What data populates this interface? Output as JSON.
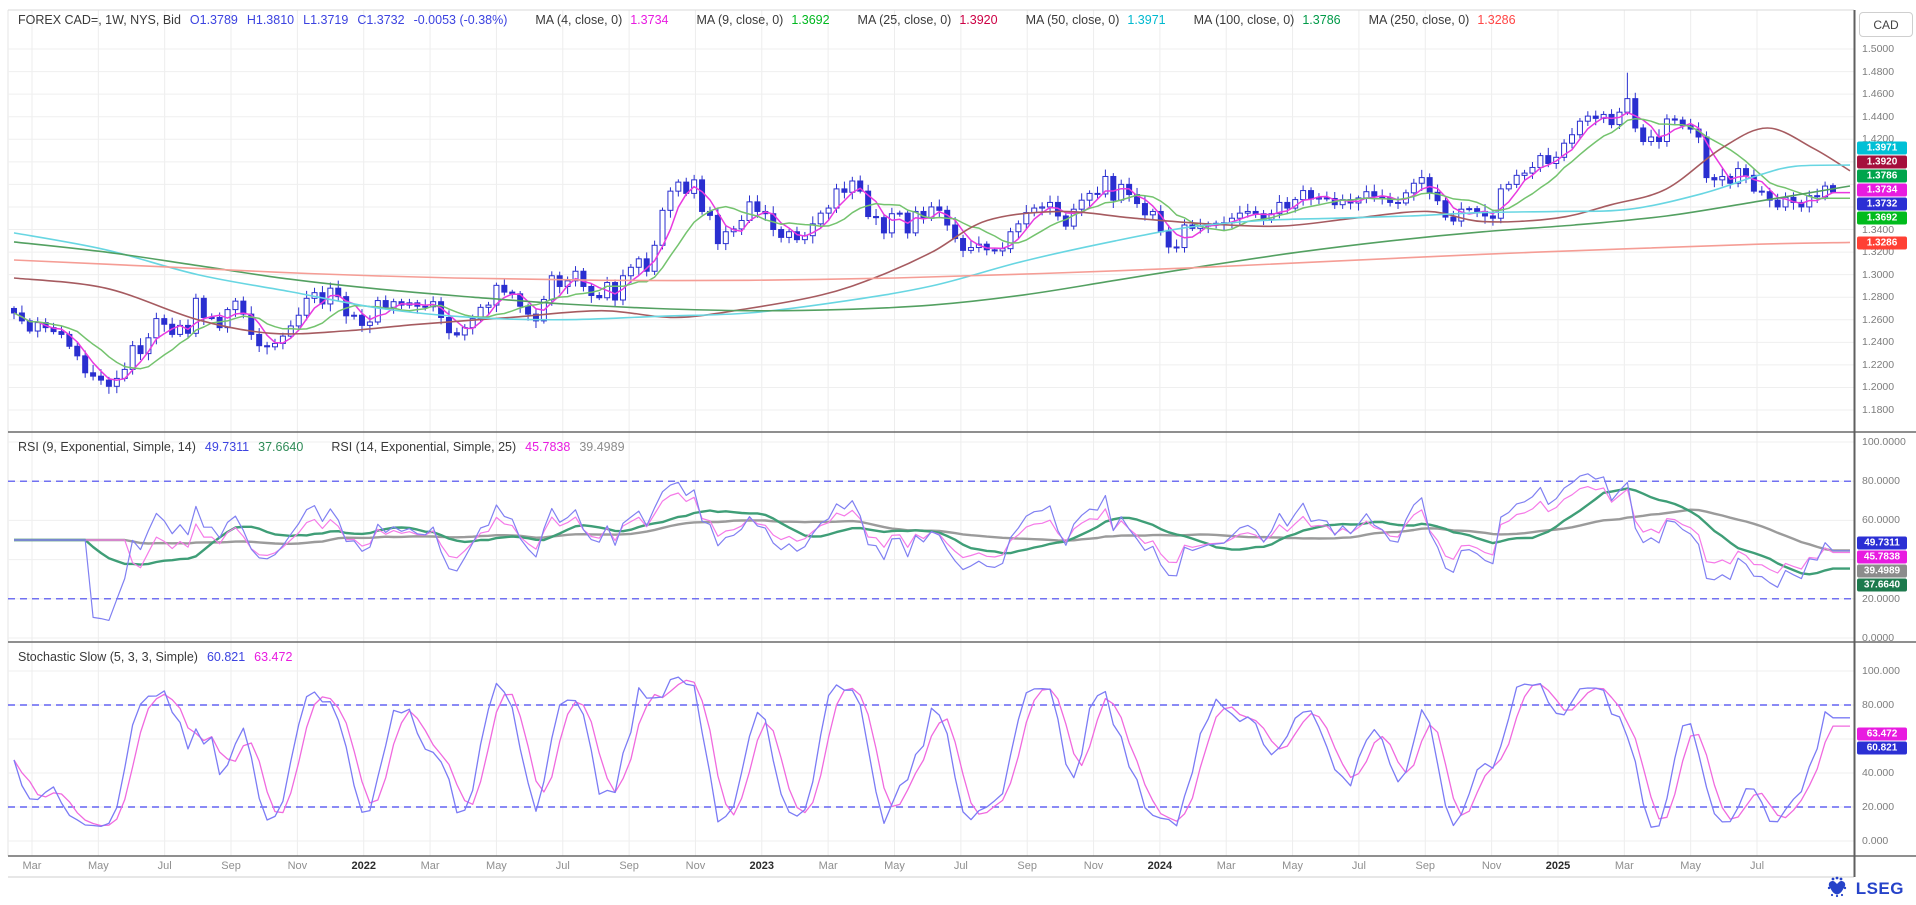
{
  "window": {
    "instrument_tab": "CAD"
  },
  "footer": {
    "logo_text": "LSEG"
  },
  "chart_data": [
    {
      "type": "candlestick",
      "symbol": "FOREX CAD=",
      "interval": "1W",
      "legend": {
        "title": "FOREX CAD=, 1W, NYS, Bid",
        "open": "O1.3789",
        "high": "H1.3810",
        "low": "L1.3719",
        "close": "C1.3732",
        "change": "-0.0053 (-0.38%)",
        "ma": [
          {
            "label": "MA (4, close, 0)",
            "value": "1.3734",
            "color": "#e81be0"
          },
          {
            "label": "MA (9, close, 0)",
            "value": "1.3692",
            "color": "#00b81f"
          },
          {
            "label": "MA (25, close, 0)",
            "value": "1.3920",
            "color": "#cc0044"
          },
          {
            "label": "MA (50, close, 0)",
            "value": "1.3971",
            "color": "#00b9cf"
          },
          {
            "label": "MA (100, close, 0)",
            "value": "1.3786",
            "color": "#009a48"
          },
          {
            "label": "MA (250, close, 0)",
            "value": "1.3286",
            "color": "#ff4545"
          }
        ]
      },
      "current_candle": {
        "open": 1.3789,
        "high": 1.381,
        "low": 1.3719,
        "close": 1.3732
      },
      "ylim": [
        1.16,
        1.515
      ],
      "y_ticks": [
        "1.5000",
        "1.4800",
        "1.4600",
        "1.4400",
        "1.4200",
        "1.3400",
        "1.3200",
        "1.3000",
        "1.2800",
        "1.2600",
        "1.2400",
        "1.2200",
        "1.2000",
        "1.1800"
      ],
      "x_labels": [
        {
          "text": "Mar"
        },
        {
          "text": "May"
        },
        {
          "text": "Jul"
        },
        {
          "text": "Sep"
        },
        {
          "text": "Nov"
        },
        {
          "text": "2022",
          "bold": true
        },
        {
          "text": "Mar"
        },
        {
          "text": "May"
        },
        {
          "text": "Jul"
        },
        {
          "text": "Sep"
        },
        {
          "text": "Nov"
        },
        {
          "text": "2023",
          "bold": true
        },
        {
          "text": "Mar"
        },
        {
          "text": "May"
        },
        {
          "text": "Jul"
        },
        {
          "text": "Sep"
        },
        {
          "text": "Nov"
        },
        {
          "text": "2024",
          "bold": true
        },
        {
          "text": "Mar"
        },
        {
          "text": "May"
        },
        {
          "text": "Jul"
        },
        {
          "text": "Sep"
        },
        {
          "text": "Nov"
        },
        {
          "text": "2025",
          "bold": true
        },
        {
          "text": "Mar"
        },
        {
          "text": "May"
        },
        {
          "text": "Jul"
        }
      ],
      "closes": [
        1.266,
        1.259,
        1.25,
        1.2575,
        1.253,
        1.2495,
        1.247,
        1.2365,
        1.228,
        1.213,
        1.21,
        1.2065,
        1.201,
        1.208,
        1.216,
        1.237,
        1.23,
        1.244,
        1.261,
        1.256,
        1.247,
        1.255,
        1.248,
        1.279,
        1.262,
        1.262,
        1.253,
        1.269,
        1.2765,
        1.265,
        1.247,
        1.237,
        1.236,
        1.239,
        1.2455,
        1.2545,
        1.264,
        1.279,
        1.284,
        1.274,
        1.288,
        1.2805,
        1.2635,
        1.264,
        1.255,
        1.258,
        1.277,
        1.271,
        1.276,
        1.273,
        1.275,
        1.272,
        1.2715,
        1.276,
        1.262,
        1.2485,
        1.2465,
        1.253,
        1.261,
        1.271,
        1.273,
        1.2905,
        1.2845,
        1.283,
        1.272,
        1.265,
        1.259,
        1.278,
        1.299,
        1.2895,
        1.2945,
        1.303,
        1.2895,
        1.2815,
        1.2795,
        1.293,
        1.2775,
        1.299,
        1.3065,
        1.314,
        1.303,
        1.326,
        1.357,
        1.374,
        1.382,
        1.372,
        1.384,
        1.356,
        1.3525,
        1.3275,
        1.338,
        1.3405,
        1.348,
        1.3645,
        1.356,
        1.354,
        1.34,
        1.333,
        1.338,
        1.331,
        1.3345,
        1.345,
        1.3545,
        1.359,
        1.376,
        1.373,
        1.383,
        1.374,
        1.3515,
        1.3505,
        1.337,
        1.354,
        1.3545,
        1.337,
        1.356,
        1.35,
        1.36,
        1.357,
        1.344,
        1.332,
        1.3215,
        1.324,
        1.327,
        1.322,
        1.321,
        1.323,
        1.338,
        1.345,
        1.355,
        1.359,
        1.36,
        1.364,
        1.352,
        1.343,
        1.358,
        1.366,
        1.372,
        1.3715,
        1.387,
        1.366,
        1.38,
        1.371,
        1.363,
        1.353,
        1.356,
        1.338,
        1.3245,
        1.324,
        1.344,
        1.341,
        1.343,
        1.345,
        1.3455,
        1.346,
        1.35,
        1.3545,
        1.356,
        1.354,
        1.349,
        1.354,
        1.364,
        1.359,
        1.3665,
        1.3745,
        1.367,
        1.368,
        1.3675,
        1.362,
        1.3665,
        1.3635,
        1.368,
        1.3735,
        1.3695,
        1.368,
        1.364,
        1.3635,
        1.3725,
        1.381,
        1.386,
        1.373,
        1.3655,
        1.351,
        1.3475,
        1.358,
        1.3585,
        1.356,
        1.352,
        1.35,
        1.376,
        1.38,
        1.388,
        1.39,
        1.395,
        1.4055,
        1.3985,
        1.404,
        1.4165,
        1.424,
        1.436,
        1.4405,
        1.4385,
        1.442,
        1.433,
        1.444,
        1.456,
        1.43,
        1.418,
        1.422,
        1.418,
        1.438,
        1.437,
        1.432,
        1.429,
        1.422,
        1.386,
        1.384,
        1.387,
        1.381,
        1.394,
        1.388,
        1.374,
        1.3735,
        1.366,
        1.36,
        1.3685,
        1.364,
        1.36,
        1.37,
        1.369,
        1.3785,
        1.3732
      ],
      "spike": {
        "index": 204,
        "high": 1.479
      },
      "overlays": [
        {
          "name": "MA 4",
          "window": 4,
          "color": "#e93ae0"
        },
        {
          "name": "MA 9",
          "window": 9,
          "color": "#74c36e"
        },
        {
          "name": "MA 25",
          "color": "#a65b60",
          "points": [
            [
              0,
              1.297
            ],
            [
              0.05,
              1.288
            ],
            [
              0.1,
              1.26
            ],
            [
              0.14,
              1.248
            ],
            [
              0.18,
              1.25
            ],
            [
              0.22,
              1.256
            ],
            [
              0.27,
              1.262
            ],
            [
              0.32,
              1.268
            ],
            [
              0.36,
              1.262
            ],
            [
              0.4,
              1.27
            ],
            [
              0.44,
              1.282
            ],
            [
              0.47,
              1.298
            ],
            [
              0.5,
              1.32
            ],
            [
              0.53,
              1.348
            ],
            [
              0.57,
              1.356
            ],
            [
              0.61,
              1.35
            ],
            [
              0.65,
              1.345
            ],
            [
              0.69,
              1.343
            ],
            [
              0.73,
              1.35
            ],
            [
              0.77,
              1.356
            ],
            [
              0.8,
              1.347
            ],
            [
              0.84,
              1.35
            ],
            [
              0.87,
              1.362
            ],
            [
              0.9,
              1.376
            ],
            [
              0.93,
              1.412
            ],
            [
              0.955,
              1.43
            ],
            [
              0.98,
              1.412
            ],
            [
              1,
              1.392
            ]
          ]
        },
        {
          "name": "MA 50",
          "color": "#68d6e2",
          "points": [
            [
              0,
              1.337
            ],
            [
              0.05,
              1.322
            ],
            [
              0.1,
              1.3
            ],
            [
              0.15,
              1.285
            ],
            [
              0.2,
              1.27
            ],
            [
              0.25,
              1.262
            ],
            [
              0.3,
              1.26
            ],
            [
              0.35,
              1.263
            ],
            [
              0.4,
              1.266
            ],
            [
              0.45,
              1.276
            ],
            [
              0.5,
              1.29
            ],
            [
              0.55,
              1.312
            ],
            [
              0.6,
              1.33
            ],
            [
              0.64,
              1.342
            ],
            [
              0.68,
              1.348
            ],
            [
              0.72,
              1.35
            ],
            [
              0.76,
              1.352
            ],
            [
              0.8,
              1.355
            ],
            [
              0.84,
              1.356
            ],
            [
              0.88,
              1.358
            ],
            [
              0.92,
              1.372
            ],
            [
              0.95,
              1.388
            ],
            [
              0.97,
              1.396
            ],
            [
              1,
              1.3971
            ]
          ]
        },
        {
          "name": "MA 100",
          "color": "#53a061",
          "points": [
            [
              0,
              1.329
            ],
            [
              0.05,
              1.32
            ],
            [
              0.1,
              1.308
            ],
            [
              0.15,
              1.296
            ],
            [
              0.2,
              1.287
            ],
            [
              0.25,
              1.28
            ],
            [
              0.3,
              1.274
            ],
            [
              0.35,
              1.27
            ],
            [
              0.4,
              1.268
            ],
            [
              0.45,
              1.269
            ],
            [
              0.5,
              1.273
            ],
            [
              0.55,
              1.282
            ],
            [
              0.6,
              1.295
            ],
            [
              0.65,
              1.308
            ],
            [
              0.7,
              1.32
            ],
            [
              0.75,
              1.33
            ],
            [
              0.8,
              1.338
            ],
            [
              0.85,
              1.344
            ],
            [
              0.9,
              1.352
            ],
            [
              0.95,
              1.365
            ],
            [
              1,
              1.3786
            ]
          ]
        },
        {
          "name": "MA 250",
          "color": "#f59d95",
          "points": [
            [
              0,
              1.313
            ],
            [
              0.08,
              1.307
            ],
            [
              0.16,
              1.301
            ],
            [
              0.24,
              1.297
            ],
            [
              0.32,
              1.295
            ],
            [
              0.4,
              1.295
            ],
            [
              0.48,
              1.297
            ],
            [
              0.56,
              1.301
            ],
            [
              0.64,
              1.306
            ],
            [
              0.72,
              1.312
            ],
            [
              0.8,
              1.318
            ],
            [
              0.88,
              1.323
            ],
            [
              0.95,
              1.327
            ],
            [
              1,
              1.3286
            ]
          ]
        }
      ],
      "axis_badges": [
        {
          "text": "1.3971",
          "bg": "#00c0d6"
        },
        {
          "text": "1.3920",
          "bg": "#a50f3c"
        },
        {
          "text": "1.3786",
          "bg": "#00a44c"
        },
        {
          "text": "1.3734",
          "bg": "#e81be0"
        },
        {
          "text": "1.3732",
          "bg": "#2b2fd4"
        },
        {
          "text": "1.3692",
          "bg": "#00bb1c"
        },
        {
          "text": "1.3286",
          "bg": "#ff4034"
        }
      ]
    },
    {
      "type": "line",
      "indicator": "RSI",
      "legend": {
        "groups": [
          {
            "label": "RSI (9, Exponential, Simple, 14)",
            "values": [
              {
                "text": "49.7311",
                "color": "#3c43e0"
              },
              {
                "text": "37.6640",
                "color": "#2e8b57"
              }
            ]
          },
          {
            "label": "RSI (14, Exponential, Simple, 25)",
            "values": [
              {
                "text": "45.7838",
                "color": "#e81be0"
              },
              {
                "text": "39.4989",
                "color": "#8c8c8c"
              }
            ]
          }
        ]
      },
      "params": {
        "rsi_periods": [
          9,
          14
        ],
        "smoothing_periods": [
          14,
          25
        ]
      },
      "y_ticks": [
        "100.0000",
        "80.0000",
        "60.0000",
        "20.0000",
        "0.0000"
      ],
      "overbought_level": 80,
      "oversold_level": 20,
      "series_colors": {
        "rsi9": "#8080f2",
        "rsi9_signal": "#3f9e77",
        "rsi14": "#f57ae8",
        "rsi14_signal": "#9b9b9b"
      },
      "axis_badges": [
        {
          "text": "49.7311",
          "bg": "#2b2fd4"
        },
        {
          "text": "45.7838",
          "bg": "#e81be0"
        },
        {
          "text": "39.4989",
          "bg": "#8c8c8c"
        },
        {
          "text": "37.6640",
          "bg": "#1d7a4d"
        }
      ]
    },
    {
      "type": "line",
      "indicator": "Stochastic Slow",
      "legend": {
        "title": "Stochastic Slow (5, 3, 3, Simple)",
        "values": [
          {
            "text": "60.821",
            "color": "#3c43e0"
          },
          {
            "text": "63.472",
            "color": "#e81be0"
          }
        ]
      },
      "params": {
        "k_period": 5,
        "k_smoothing": 3,
        "d_period": 3
      },
      "y_ticks": [
        "100.000",
        "80.000",
        "40.000",
        "20.000",
        "0.000"
      ],
      "overbought_level": 80,
      "oversold_level": 20,
      "series_colors": {
        "percent_k": "#7b7bf5",
        "percent_d": "#f06adf"
      },
      "axis_badges": [
        {
          "text": "63.472",
          "bg": "#e81be0"
        },
        {
          "text": "60.821",
          "bg": "#2b2fd4"
        }
      ]
    }
  ]
}
